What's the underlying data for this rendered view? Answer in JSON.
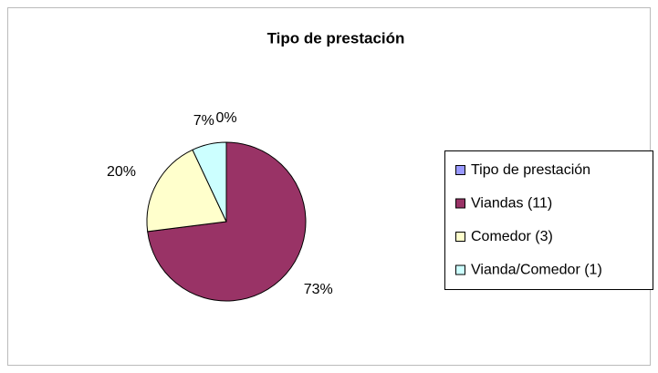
{
  "chart_data": {
    "type": "pie",
    "title": "Tipo de prestación",
    "categories": [
      "Tipo de prestación",
      "Viandas (11)",
      "Comedor (3)",
      "Vianda/Comedor (1)"
    ],
    "values": [
      0,
      73,
      20,
      7
    ],
    "value_labels": [
      "0%",
      "73%",
      "20%",
      "7%"
    ],
    "colors": [
      "#9999ff",
      "#993366",
      "#ffffcc",
      "#ccffff"
    ],
    "legend": "right"
  }
}
